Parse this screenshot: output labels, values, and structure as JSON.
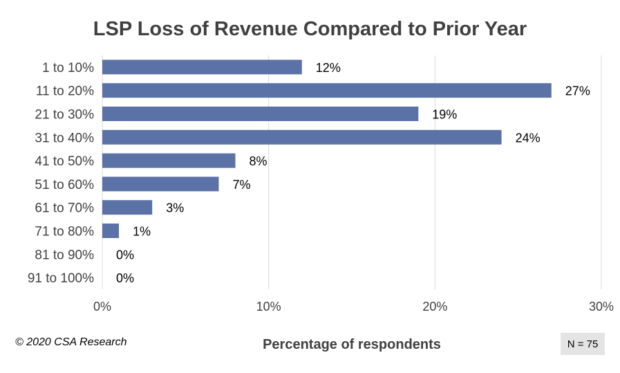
{
  "chart_data": {
    "type": "bar",
    "orientation": "horizontal",
    "title": "LSP Loss of Revenue Compared to Prior Year",
    "xlabel": "Percentage of respondents",
    "ylabel": "",
    "categories": [
      "1 to 10%",
      "11 to 20%",
      "21 to 30%",
      "31 to 40%",
      "41 to 50%",
      "51 to 60%",
      "61 to 70%",
      "71 to 80%",
      "81 to 90%",
      "91 to 100%"
    ],
    "values": [
      12,
      27,
      19,
      24,
      8,
      7,
      3,
      1,
      0,
      0
    ],
    "data_labels": [
      "12%",
      "27%",
      "19%",
      "24%",
      "8%",
      "7%",
      "3%",
      "1%",
      "0%",
      "0%"
    ],
    "xlim": [
      0,
      30
    ],
    "xticks": [
      0,
      10,
      20,
      30
    ],
    "xtick_labels": [
      "0%",
      "10%",
      "20%",
      "30%"
    ],
    "grid": true,
    "legend": "none",
    "bar_color": "#5b72a6"
  },
  "footer": {
    "copyright": "© 2020 CSA Research",
    "sample_size": "N = 75"
  }
}
